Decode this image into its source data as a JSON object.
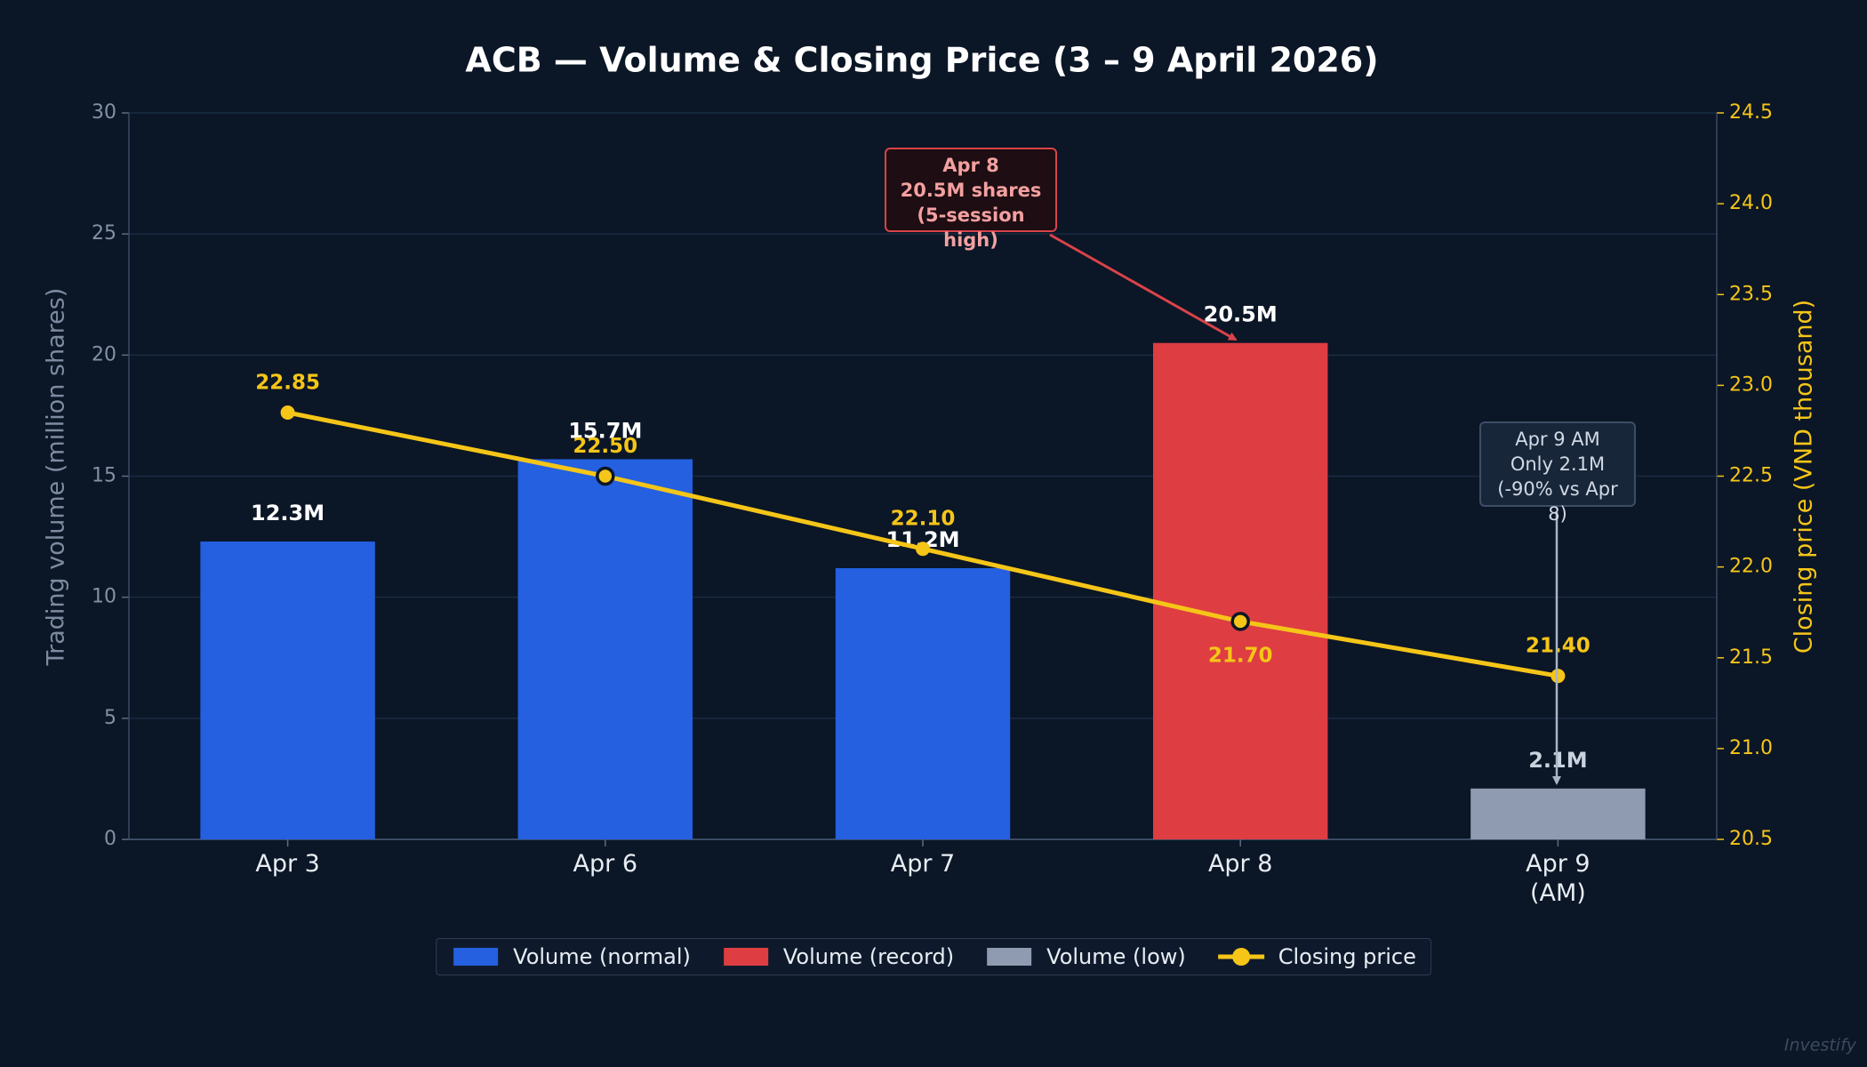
{
  "chart_data": {
    "type": "bar",
    "title": "ACB — Volume & Closing Price (3 – 9 April 2026)",
    "categories": [
      "Apr 3",
      "Apr 6",
      "Apr 7",
      "Apr 8",
      "Apr 9\n(AM)"
    ],
    "ylabel": "Trading volume (million shares)",
    "y2label": "Closing price (VND thousand)",
    "ylim": [
      0,
      30
    ],
    "yticks": [
      0,
      5,
      10,
      15,
      20,
      25,
      30
    ],
    "y2lim": [
      20.5,
      24.5
    ],
    "y2ticks": [
      20.5,
      {
        "value": 21,
        "label": "21.0"
      },
      21.5,
      {
        "value": 22,
        "label": "22.0"
      },
      22.5,
      {
        "value": 23,
        "label": "23.0"
      },
      23.5,
      {
        "value": 24,
        "label": "24.0"
      },
      24.5
    ],
    "grid": true,
    "legend": "bottom",
    "series": [
      {
        "name": "Volume (normal)",
        "type": "bar",
        "color": "#2460df",
        "values": [
          12.3,
          15.7,
          11.2,
          null,
          null
        ],
        "value_labels": [
          "12.3M",
          "15.7M",
          "11.2M",
          null,
          null
        ]
      },
      {
        "name": "Volume (record)",
        "type": "bar",
        "color": "#de3d42",
        "values": [
          null,
          null,
          null,
          20.5,
          null
        ],
        "value_labels": [
          null,
          null,
          null,
          "20.5M",
          null
        ]
      },
      {
        "name": "Volume (low)",
        "type": "bar",
        "color": "#8e9bb1",
        "values": [
          null,
          null,
          null,
          null,
          2.1
        ],
        "value_labels": [
          null,
          null,
          null,
          null,
          "2.1M"
        ]
      },
      {
        "name": "Closing price",
        "type": "line",
        "axis": "y2",
        "color": "#f5c518",
        "values": [
          22.85,
          22.5,
          22.1,
          21.7,
          21.4
        ],
        "value_labels": [
          "22.85",
          "22.50",
          "22.10",
          "21.70",
          "21.40"
        ]
      }
    ],
    "annotations": [
      "Apr 8\n20.5M shares\n(5-session high)",
      "Apr 9 AM\nOnly 2.1M\n(-90% vs Apr 8)"
    ],
    "watermark": "Investify"
  }
}
